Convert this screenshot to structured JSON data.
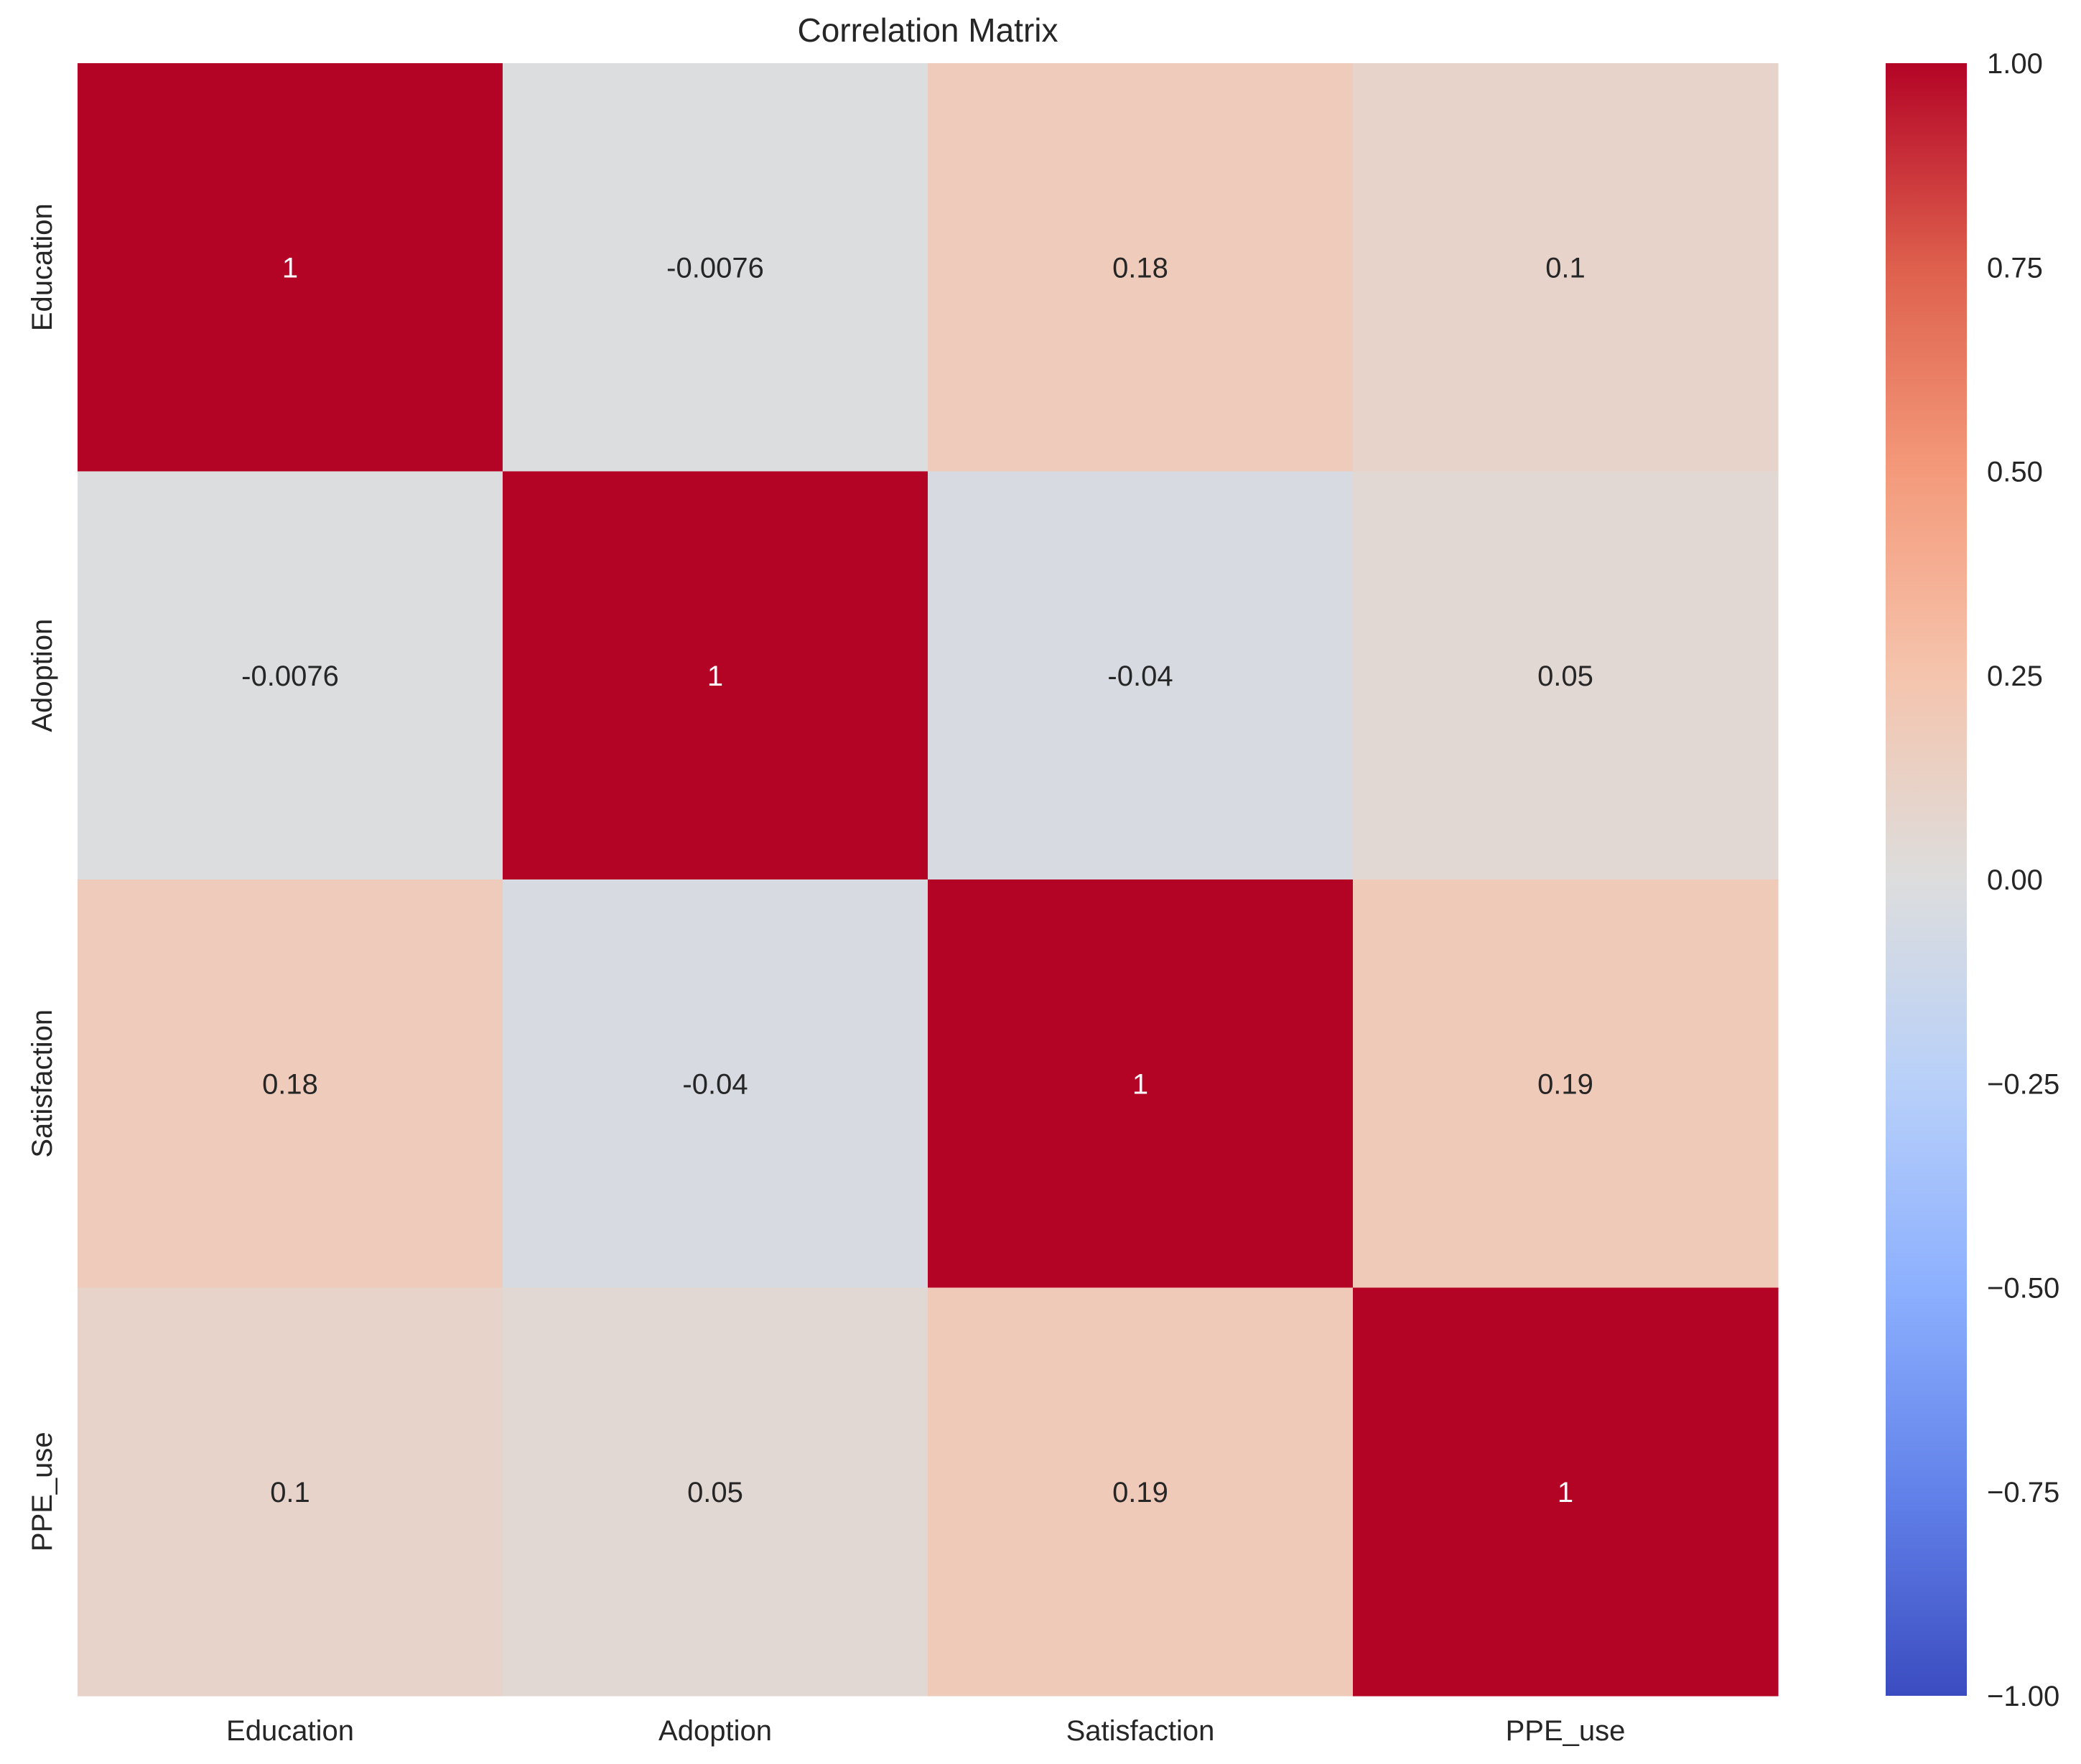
{
  "chart_data": {
    "type": "heatmap",
    "title": "Correlation Matrix",
    "xlabel": "",
    "ylabel": "",
    "x_categories": [
      "Education",
      "Adoption",
      "Satisfaction",
      "PPE_use"
    ],
    "y_categories": [
      "Education",
      "Adoption",
      "Satisfaction",
      "PPE_use"
    ],
    "values": [
      [
        1,
        -0.0076,
        0.18,
        0.1
      ],
      [
        -0.0076,
        1,
        -0.04,
        0.05
      ],
      [
        0.18,
        -0.04,
        1,
        0.19
      ],
      [
        0.1,
        0.05,
        0.19,
        1
      ]
    ],
    "annotations": [
      [
        "1",
        "-0.0076",
        "0.18",
        "0.1"
      ],
      [
        "-0.0076",
        "1",
        "-0.04",
        "0.05"
      ],
      [
        "0.18",
        "-0.04",
        "1",
        "0.19"
      ],
      [
        "0.1",
        "0.05",
        "0.19",
        "1"
      ]
    ],
    "colormap": "coolwarm",
    "vmin": -1,
    "vmax": 1,
    "colorbar": {
      "ticks": [
        1.0,
        0.75,
        0.5,
        0.25,
        0.0,
        -0.25,
        -0.5,
        -0.75,
        -1.0
      ],
      "tick_labels": [
        "1.00",
        "0.75",
        "0.50",
        "0.25",
        "0.00",
        "−0.25",
        "−0.50",
        "−0.75",
        "−1.00"
      ]
    },
    "grid": false,
    "legend": "colorbar-right"
  }
}
